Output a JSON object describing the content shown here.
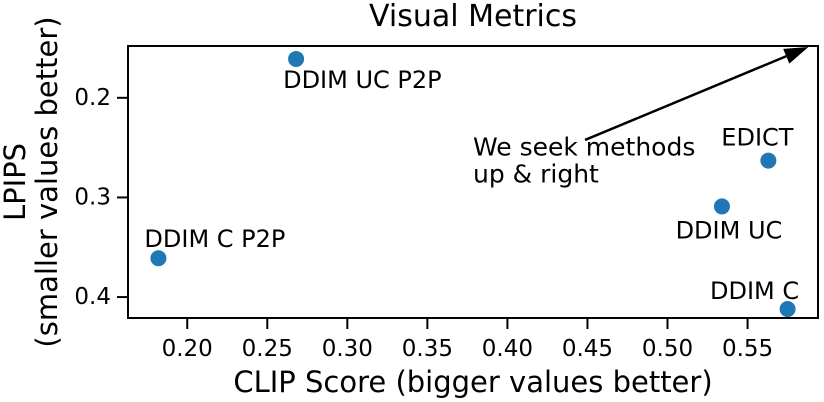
{
  "chart_data": {
    "type": "scatter",
    "title": "Visual Metrics",
    "xlabel": "CLIP Score (bigger values better)",
    "ylabel_lines": [
      "LPIPS",
      "(smaller values better)"
    ],
    "xlim": [
      0.163,
      0.594
    ],
    "ylim": [
      0.148,
      0.421
    ],
    "y_axis_orientation": "inverted (smaller values at top)",
    "grid": false,
    "legend": "none",
    "marker_color": "#1f77b4",
    "axis_color": "#000000",
    "x_ticks": {
      "values": [
        0.2,
        0.25,
        0.3,
        0.35,
        0.4,
        0.45,
        0.5,
        0.55
      ],
      "labels": [
        "0.20",
        "0.25",
        "0.30",
        "0.35",
        "0.40",
        "0.45",
        "0.50",
        "0.55"
      ]
    },
    "y_ticks": {
      "values": [
        0.2,
        0.3,
        0.4
      ],
      "labels": [
        "0.2",
        "0.3",
        "0.4"
      ]
    },
    "points": [
      {
        "label": "DDIM UC P2P",
        "x": 0.268,
        "y": 0.161,
        "label_align": "start",
        "label_offset": [
          -13,
          21
        ]
      },
      {
        "label": "DDIM C P2P",
        "x": 0.182,
        "y": 0.361,
        "label_align": "start",
        "label_offset": [
          -14,
          -19
        ]
      },
      {
        "label": "EDICT",
        "x": 0.563,
        "y": 0.263,
        "label_align": "middle",
        "label_offset": [
          -11,
          -23
        ]
      },
      {
        "label": "DDIM UC",
        "x": 0.534,
        "y": 0.309,
        "label_align": "middle",
        "label_offset": [
          7,
          24
        ]
      },
      {
        "label": "DDIM C",
        "x": 0.575,
        "y": 0.412,
        "label_align": "middle",
        "label_offset": [
          -33,
          -18
        ]
      }
    ],
    "annotation": {
      "lines": [
        "We seek methods",
        "up & right"
      ],
      "text_xy": [
        0.3785,
        0.2495
      ],
      "line_height_px": 27,
      "arrow_tail_xy": [
        0.4485,
        0.2423
      ],
      "arrow_tip_xy": [
        0.588,
        0.149
      ]
    }
  }
}
